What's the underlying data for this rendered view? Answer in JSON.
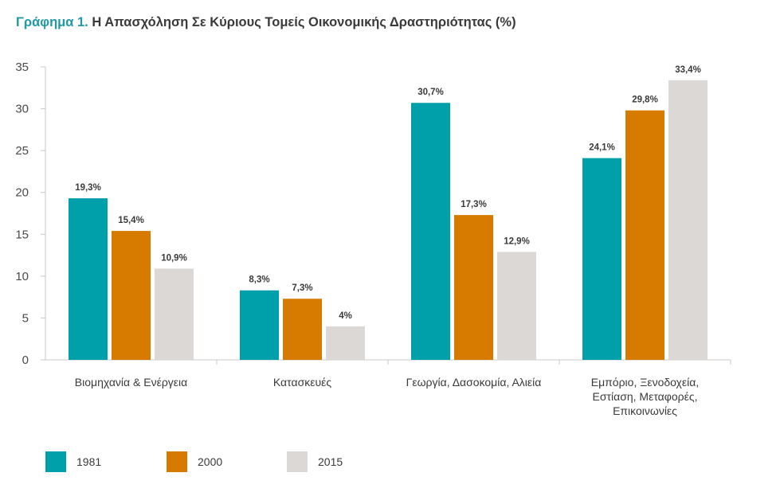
{
  "chart_data": {
    "type": "bar",
    "title_label": "Γράφημα 1.",
    "title": "Η Απασχόληση Σε Κύριους Τομείς Οικονομικής Δραστηριότητας (%)",
    "categories": [
      [
        "Βιομηχανία & Ενέργεια"
      ],
      [
        "Κατασκευές"
      ],
      [
        "Γεωργία, Δασοκομία, Αλιεία"
      ],
      [
        "Εμπόριο, Ξενοδοχεία,",
        "Εστίαση, Μεταφορές,",
        "Επικοινωνίες"
      ]
    ],
    "series": [
      {
        "name": "1981",
        "color": "#00a0ab",
        "values": [
          19.3,
          8.3,
          30.7,
          24.1
        ],
        "labels": [
          "19,3%",
          "8,3%",
          "30,7%",
          "24,1%"
        ]
      },
      {
        "name": "2000",
        "color": "#d67a00",
        "values": [
          15.4,
          7.3,
          17.3,
          29.8
        ],
        "labels": [
          "15,4%",
          "7,3%",
          "17,3%",
          "29,8%"
        ]
      },
      {
        "name": "2015",
        "color": "#dcd8d5",
        "values": [
          10.9,
          4,
          12.9,
          33.4
        ],
        "labels": [
          "10,9%",
          "4%",
          "12,9%",
          "33,4%"
        ]
      }
    ],
    "ylim": [
      0,
      35
    ],
    "yticks": [
      0,
      5,
      10,
      15,
      20,
      25,
      30,
      35
    ],
    "grid": false,
    "legend_position": "bottom-left"
  }
}
